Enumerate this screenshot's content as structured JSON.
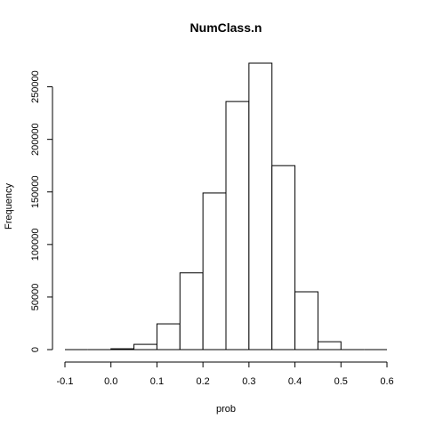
{
  "chart_data": {
    "type": "bar",
    "title": "NumClass.n",
    "xlabel": "prob",
    "ylabel": "Frequency",
    "bins": [
      {
        "x0": -0.1,
        "x1": -0.05,
        "count": 0
      },
      {
        "x0": -0.05,
        "x1": 0.0,
        "count": 0
      },
      {
        "x0": 0.0,
        "x1": 0.05,
        "count": 800
      },
      {
        "x0": 0.05,
        "x1": 0.1,
        "count": 5000
      },
      {
        "x0": 0.1,
        "x1": 0.15,
        "count": 24500
      },
      {
        "x0": 0.15,
        "x1": 0.2,
        "count": 73000
      },
      {
        "x0": 0.2,
        "x1": 0.25,
        "count": 149000
      },
      {
        "x0": 0.25,
        "x1": 0.3,
        "count": 236000
      },
      {
        "x0": 0.3,
        "x1": 0.35,
        "count": 272500
      },
      {
        "x0": 0.35,
        "x1": 0.4,
        "count": 175000
      },
      {
        "x0": 0.4,
        "x1": 0.45,
        "count": 55000
      },
      {
        "x0": 0.45,
        "x1": 0.5,
        "count": 7500
      },
      {
        "x0": 0.5,
        "x1": 0.55,
        "count": 0
      },
      {
        "x0": 0.55,
        "x1": 0.6,
        "count": 0
      }
    ],
    "xlim": [
      -0.1,
      0.6
    ],
    "ylim": [
      0,
      272500
    ],
    "xticks": [
      -0.1,
      0.0,
      0.1,
      0.2,
      0.3,
      0.4,
      0.5,
      0.6
    ],
    "xtick_labels": [
      "-0.1",
      "0.0",
      "0.1",
      "0.2",
      "0.3",
      "0.4",
      "0.5",
      "0.6"
    ],
    "yticks": [
      0,
      50000,
      100000,
      150000,
      200000,
      250000
    ],
    "ytick_labels": [
      "0",
      "50000",
      "100000",
      "150000",
      "200000",
      "250000"
    ],
    "grid": false,
    "legend": "none",
    "bar_fill": "#ffffff",
    "bar_stroke": "#000000"
  }
}
